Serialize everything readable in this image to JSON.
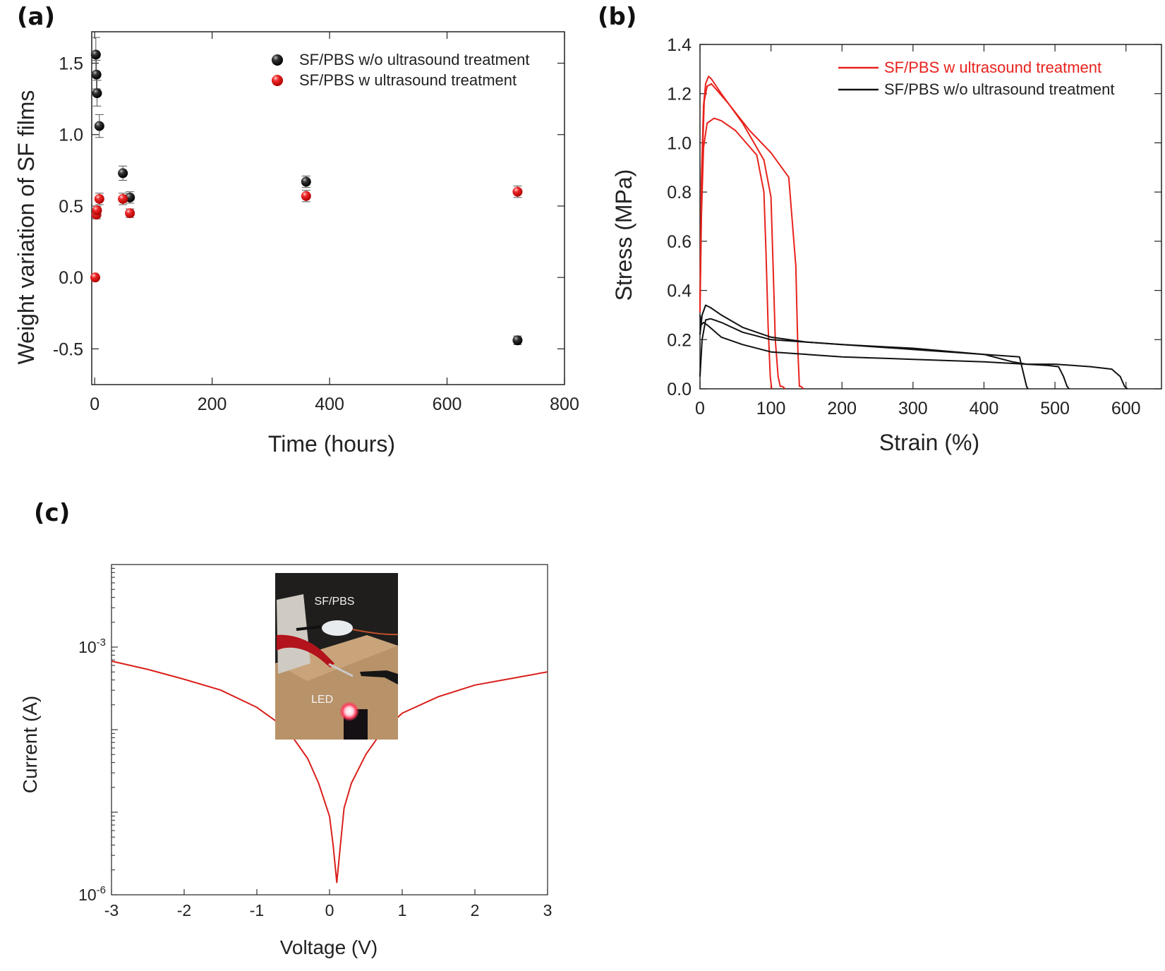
{
  "figure": {
    "panel_labels": [
      "(a)",
      "(b)",
      "(c)"
    ],
    "inset_photo": {
      "labels": [
        "SF/PBS",
        "LED"
      ]
    }
  },
  "chart_data": [
    {
      "id": "a",
      "type": "scatter",
      "title": "",
      "xlabel": "Time (hours)",
      "ylabel": "Weight variation of SF films",
      "xlim": [
        -5,
        800
      ],
      "ylim": [
        -0.75,
        1.72
      ],
      "xticks": [
        0,
        200,
        400,
        600,
        800
      ],
      "yticks": [
        -0.5,
        0.0,
        0.5,
        1.0,
        1.5
      ],
      "ytick_labels": [
        "-0.5",
        "0.0",
        "0.5",
        "1.0",
        "1.5"
      ],
      "legend_position": "top-right",
      "grid": false,
      "series": [
        {
          "name": "SF/PBS w/o ultrasound treatment",
          "color": "#111111",
          "x": [
            2,
            3,
            4,
            8,
            48,
            60,
            360,
            720
          ],
          "y": [
            1.56,
            1.42,
            1.29,
            1.06,
            0.73,
            0.56,
            0.67,
            -0.44
          ],
          "err": [
            0.12,
            0.1,
            0.09,
            0.08,
            0.05,
            0.04,
            0.04,
            0.03
          ]
        },
        {
          "name": "SF/PBS w ultrasound treatment",
          "color": "#e8221c",
          "x": [
            1,
            3,
            4,
            8,
            48,
            60,
            360,
            720
          ],
          "y": [
            0.0,
            0.44,
            0.47,
            0.55,
            0.55,
            0.45,
            0.57,
            0.6
          ],
          "err": [
            0.0,
            0.03,
            0.03,
            0.04,
            0.04,
            0.03,
            0.04,
            0.04
          ]
        }
      ]
    },
    {
      "id": "b",
      "type": "line",
      "title": "",
      "xlabel": "Strain (%)",
      "ylabel": "Stress (MPa)",
      "xlim": [
        0,
        650
      ],
      "ylim": [
        0,
        1.4
      ],
      "xticks": [
        0,
        100,
        200,
        300,
        400,
        500,
        600
      ],
      "yticks": [
        0.0,
        0.2,
        0.4,
        0.6,
        0.8,
        1.0,
        1.2,
        1.4
      ],
      "ytick_labels": [
        "0.0",
        "0.2",
        "0.4",
        "0.6",
        "0.8",
        "1.0",
        "1.2",
        "1.4"
      ],
      "legend_position": "top-right",
      "grid": false,
      "legend": [
        {
          "name": "SF/PBS w ultrasound treatment",
          "color": "#e8221c"
        },
        {
          "name": "SF/PBS w/o ultrasound treatment",
          "color": "#111111"
        }
      ],
      "series": [
        {
          "color": "#e8221c",
          "x": [
            0,
            2,
            5,
            8,
            12,
            16,
            30,
            60,
            90,
            100,
            103,
            106,
            110,
            113,
            116,
            120
          ],
          "y": [
            0.31,
            0.85,
            1.15,
            1.24,
            1.27,
            1.26,
            1.2,
            1.08,
            0.93,
            0.78,
            0.5,
            0.2,
            0.05,
            0.01,
            0.01,
            0.0
          ]
        },
        {
          "color": "#e8221c",
          "x": [
            0,
            3,
            6,
            10,
            16,
            25,
            40,
            70,
            100,
            125,
            135,
            138,
            140,
            142,
            146
          ],
          "y": [
            0.36,
            0.9,
            1.17,
            1.23,
            1.24,
            1.21,
            1.16,
            1.05,
            0.96,
            0.86,
            0.5,
            0.15,
            0.01,
            0.01,
            0.0
          ]
        },
        {
          "color": "#e8221c",
          "x": [
            0,
            2,
            5,
            10,
            20,
            30,
            50,
            80,
            90,
            93,
            96,
            99,
            101
          ],
          "y": [
            0.32,
            0.7,
            0.98,
            1.08,
            1.1,
            1.09,
            1.05,
            0.95,
            0.8,
            0.55,
            0.25,
            0.05,
            0.0
          ]
        },
        {
          "color": "#111111",
          "x": [
            0,
            3,
            8,
            15,
            30,
            60,
            100,
            150,
            200,
            250,
            300,
            350,
            400,
            450,
            455,
            460,
            462
          ],
          "y": [
            0.22,
            0.3,
            0.34,
            0.33,
            0.3,
            0.25,
            0.21,
            0.19,
            0.18,
            0.17,
            0.16,
            0.15,
            0.14,
            0.13,
            0.07,
            0.01,
            0.0
          ]
        },
        {
          "color": "#111111",
          "x": [
            0,
            3,
            8,
            15,
            30,
            60,
            100,
            200,
            300,
            400,
            440,
            460,
            490,
            505,
            512,
            517,
            520
          ],
          "y": [
            0.05,
            0.2,
            0.28,
            0.285,
            0.27,
            0.23,
            0.2,
            0.18,
            0.165,
            0.14,
            0.11,
            0.1,
            0.095,
            0.09,
            0.05,
            0.01,
            0.0
          ]
        },
        {
          "color": "#111111",
          "x": [
            0,
            2,
            5,
            10,
            18,
            30,
            60,
            100,
            200,
            300,
            400,
            460,
            500,
            550,
            580,
            592,
            598,
            602
          ],
          "y": [
            0.3,
            0.26,
            0.27,
            0.26,
            0.24,
            0.21,
            0.18,
            0.15,
            0.13,
            0.12,
            0.11,
            0.1,
            0.1,
            0.09,
            0.08,
            0.05,
            0.01,
            0.0
          ]
        }
      ]
    },
    {
      "id": "c",
      "type": "line",
      "title": "",
      "xlabel": "Voltage (V)",
      "ylabel": "Current (A)",
      "xlim": [
        -3,
        3
      ],
      "ylim_log10": [
        -6,
        -2
      ],
      "yscale": "log",
      "xticks": [
        -3,
        -2,
        -1,
        0,
        1,
        2,
        3
      ],
      "ytick_labels": [
        {
          "value_log10": -3,
          "base": "10",
          "exp": "-3"
        },
        {
          "value_log10": -6,
          "base": "10",
          "exp": "-6"
        }
      ],
      "grid": false,
      "series": [
        {
          "color": "#d9201c",
          "x": [
            -3,
            -2.5,
            -2,
            -1.5,
            -1,
            -0.7,
            -0.5,
            -0.3,
            -0.15,
            0,
            0.05,
            0.1,
            0.15,
            0.2,
            0.3,
            0.5,
            0.7,
            1,
            1.5,
            2,
            2.5,
            3
          ],
          "y_log10": [
            -3.17,
            -3.27,
            -3.39,
            -3.52,
            -3.73,
            -3.92,
            -4.1,
            -4.35,
            -4.65,
            -5.05,
            -5.4,
            -5.85,
            -5.4,
            -4.95,
            -4.65,
            -4.3,
            -4.05,
            -3.8,
            -3.6,
            -3.46,
            -3.38,
            -3.3
          ]
        }
      ]
    }
  ]
}
